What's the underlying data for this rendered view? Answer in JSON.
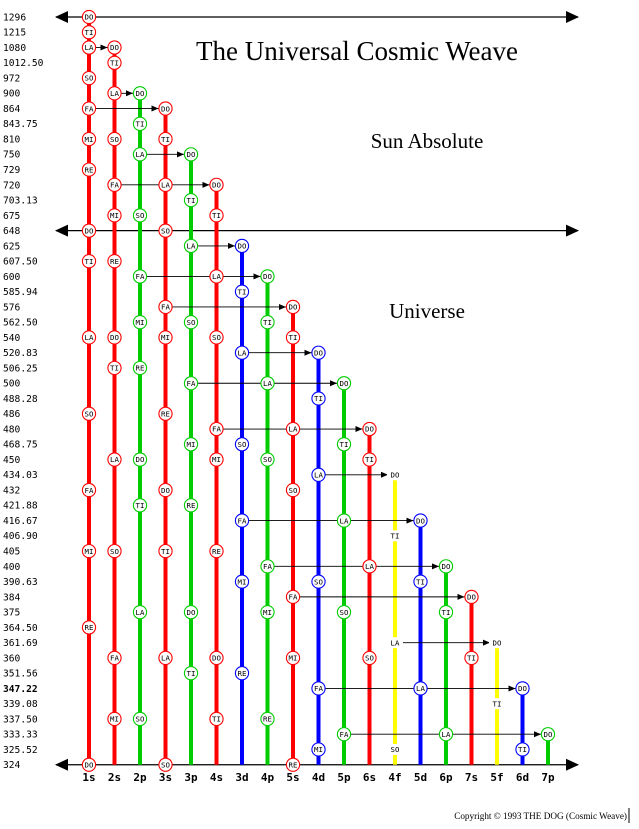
{
  "title": "The Universal Cosmic Weave",
  "labels": {
    "sun": "Sun Absolute",
    "universe": "Universe"
  },
  "copyright": "Copyright © 1993 THE DOG (Cosmic Weave)",
  "frequencies": [
    "1296",
    "1215",
    "1080",
    "1012.50",
    "972",
    "900",
    "864",
    "843.75",
    "810",
    "750",
    "729",
    "720",
    "703.13",
    "675",
    "648",
    "625",
    "607.50",
    "600",
    "585.94",
    "576",
    "562.50",
    "540",
    "520.83",
    "506.25",
    "500",
    "488.28",
    "486",
    "480",
    "468.75",
    "450",
    "434.03",
    "432",
    "421.88",
    "416.67",
    "406.90",
    "405",
    "400",
    "390.63",
    "384",
    "375",
    "364.50",
    "361.69",
    "360",
    "351.56",
    "347.22",
    "339.08",
    "337.50",
    "333.33",
    "325.52",
    "324"
  ],
  "bold_frequencies": [
    "347.22"
  ],
  "colors": {
    "red": "#ff0000",
    "green": "#00cc00",
    "blue": "#0000ff",
    "yellow": "#ffff00"
  },
  "chart_data": {
    "type": "diagram",
    "columns": [
      {
        "name": "1s",
        "color": "red",
        "top": "1296",
        "notes": [
          [
            "DO",
            "1296"
          ],
          [
            "TI",
            "1215"
          ],
          [
            "LA",
            "1080"
          ],
          [
            "SO",
            "972"
          ],
          [
            "FA",
            "864"
          ],
          [
            "MI",
            "810"
          ],
          [
            "RE",
            "729"
          ],
          [
            "DO",
            "648"
          ],
          [
            "TI",
            "607.50"
          ],
          [
            "LA",
            "540"
          ],
          [
            "SO",
            "486"
          ],
          [
            "FA",
            "432"
          ],
          [
            "MI",
            "405"
          ],
          [
            "RE",
            "364.50"
          ],
          [
            "DO",
            "324"
          ]
        ]
      },
      {
        "name": "2s",
        "color": "red",
        "top": "1080",
        "notes": [
          [
            "DO",
            "1080"
          ],
          [
            "TI",
            "1012.50"
          ],
          [
            "LA",
            "900"
          ],
          [
            "SO",
            "810"
          ],
          [
            "FA",
            "720"
          ],
          [
            "MI",
            "675"
          ],
          [
            "RE",
            "607.50"
          ],
          [
            "DO",
            "540"
          ],
          [
            "TI",
            "506.25"
          ],
          [
            "LA",
            "450"
          ],
          [
            "SO",
            "405"
          ],
          [
            "FA",
            "360"
          ],
          [
            "MI",
            "337.50"
          ]
        ]
      },
      {
        "name": "2p",
        "color": "green",
        "top": "900",
        "notes": [
          [
            "DO",
            "900"
          ],
          [
            "TI",
            "843.75"
          ],
          [
            "LA",
            "750"
          ],
          [
            "SO",
            "675"
          ],
          [
            "FA",
            "600"
          ],
          [
            "MI",
            "562.50"
          ],
          [
            "RE",
            "506.25"
          ],
          [
            "DO",
            "450"
          ],
          [
            "TI",
            "421.88"
          ],
          [
            "LA",
            "375"
          ],
          [
            "SO",
            "337.50"
          ]
        ]
      },
      {
        "name": "3s",
        "color": "red",
        "top": "864",
        "notes": [
          [
            "DO",
            "864"
          ],
          [
            "TI",
            "810"
          ],
          [
            "LA",
            "720"
          ],
          [
            "SO",
            "648"
          ],
          [
            "FA",
            "576"
          ],
          [
            "MI",
            "540"
          ],
          [
            "RE",
            "486"
          ],
          [
            "DO",
            "432"
          ],
          [
            "TI",
            "405"
          ],
          [
            "LA",
            "360"
          ],
          [
            "SO",
            "324"
          ]
        ]
      },
      {
        "name": "3p",
        "color": "green",
        "top": "750",
        "notes": [
          [
            "DO",
            "750"
          ],
          [
            "TI",
            "703.13"
          ],
          [
            "LA",
            "625"
          ],
          [
            "SO",
            "562.50"
          ],
          [
            "FA",
            "500"
          ],
          [
            "MI",
            "468.75"
          ],
          [
            "RE",
            "421.88"
          ],
          [
            "DO",
            "375"
          ],
          [
            "TI",
            "351.56"
          ]
        ]
      },
      {
        "name": "4s",
        "color": "red",
        "top": "720",
        "notes": [
          [
            "DO",
            "720"
          ],
          [
            "TI",
            "675"
          ],
          [
            "LA",
            "600"
          ],
          [
            "SO",
            "540"
          ],
          [
            "FA",
            "480"
          ],
          [
            "MI",
            "450"
          ],
          [
            "RE",
            "405"
          ],
          [
            "DO",
            "360"
          ],
          [
            "TI",
            "337.50"
          ]
        ]
      },
      {
        "name": "3d",
        "color": "blue",
        "top": "625",
        "notes": [
          [
            "DO",
            "625"
          ],
          [
            "TI",
            "585.94"
          ],
          [
            "LA",
            "520.83"
          ],
          [
            "SO",
            "468.75"
          ],
          [
            "FA",
            "416.67"
          ],
          [
            "MI",
            "390.63"
          ],
          [
            "RE",
            "351.56"
          ]
        ]
      },
      {
        "name": "4p",
        "color": "green",
        "top": "600",
        "notes": [
          [
            "DO",
            "600"
          ],
          [
            "TI",
            "562.50"
          ],
          [
            "LA",
            "500"
          ],
          [
            "SO",
            "450"
          ],
          [
            "FA",
            "400"
          ],
          [
            "MI",
            "375"
          ],
          [
            "RE",
            "337.50"
          ]
        ]
      },
      {
        "name": "5s",
        "color": "red",
        "top": "576",
        "notes": [
          [
            "DO",
            "576"
          ],
          [
            "TI",
            "540"
          ],
          [
            "LA",
            "480"
          ],
          [
            "SO",
            "432"
          ],
          [
            "FA",
            "384"
          ],
          [
            "MI",
            "360"
          ],
          [
            "RE",
            "324"
          ]
        ]
      },
      {
        "name": "4d",
        "color": "blue",
        "top": "520.83",
        "notes": [
          [
            "DO",
            "520.83"
          ],
          [
            "TI",
            "488.28"
          ],
          [
            "LA",
            "434.03"
          ],
          [
            "SO",
            "390.63"
          ],
          [
            "FA",
            "347.22"
          ],
          [
            "MI",
            "325.52"
          ]
        ]
      },
      {
        "name": "5p",
        "color": "green",
        "top": "500",
        "notes": [
          [
            "DO",
            "500"
          ],
          [
            "TI",
            "468.75"
          ],
          [
            "LA",
            "416.67"
          ],
          [
            "SO",
            "375"
          ],
          [
            "FA",
            "333.33"
          ]
        ]
      },
      {
        "name": "6s",
        "color": "red",
        "top": "480",
        "notes": [
          [
            "DO",
            "480"
          ],
          [
            "TI",
            "450"
          ],
          [
            "LA",
            "400"
          ],
          [
            "SO",
            "360"
          ]
        ]
      },
      {
        "name": "4f",
        "color": "yellow",
        "top": "434.03",
        "notes": [
          [
            "DO",
            "434.03"
          ],
          [
            "TI",
            "406.90"
          ],
          [
            "LA",
            "361.69"
          ],
          [
            "SO",
            "325.52"
          ]
        ]
      },
      {
        "name": "5d",
        "color": "blue",
        "top": "416.67",
        "notes": [
          [
            "DO",
            "416.67"
          ],
          [
            "TI",
            "390.63"
          ],
          [
            "LA",
            "347.22"
          ]
        ]
      },
      {
        "name": "6p",
        "color": "green",
        "top": "400",
        "notes": [
          [
            "DO",
            "400"
          ],
          [
            "TI",
            "375"
          ],
          [
            "LA",
            "333.33"
          ]
        ]
      },
      {
        "name": "7s",
        "color": "red",
        "top": "384",
        "notes": [
          [
            "DO",
            "384"
          ],
          [
            "TI",
            "360"
          ]
        ]
      },
      {
        "name": "5f",
        "color": "yellow",
        "top": "361.69",
        "notes": [
          [
            "DO",
            "361.69"
          ],
          [
            "TI",
            "339.08"
          ]
        ]
      },
      {
        "name": "6d",
        "color": "blue",
        "top": "347.22",
        "notes": [
          [
            "DO",
            "347.22"
          ],
          [
            "TI",
            "325.52"
          ]
        ]
      },
      {
        "name": "7p",
        "color": "green",
        "top": "333.33",
        "notes": [
          [
            "DO",
            "333.33"
          ]
        ]
      }
    ],
    "horizontal_links": [
      [
        "2s",
        "1080",
        "1s"
      ],
      [
        "2p",
        "900",
        "2s"
      ],
      [
        "3s",
        "864",
        "1s"
      ],
      [
        "3p",
        "750",
        "2p"
      ],
      [
        "4s",
        "720",
        "2s"
      ],
      [
        "3d",
        "625",
        "3p"
      ],
      [
        "4p",
        "600",
        "2p"
      ],
      [
        "5s",
        "576",
        "3s"
      ],
      [
        "4d",
        "520.83",
        "3d"
      ],
      [
        "5p",
        "500",
        "3p"
      ],
      [
        "6s",
        "480",
        "4s"
      ],
      [
        "4f",
        "434.03",
        "4d"
      ],
      [
        "5d",
        "416.67",
        "3d"
      ],
      [
        "6p",
        "400",
        "4p"
      ],
      [
        "7s",
        "384",
        "5s"
      ],
      [
        "5f",
        "361.69",
        "4f"
      ],
      [
        "6d",
        "347.22",
        "4d"
      ],
      [
        "7p",
        "333.33",
        "5p"
      ]
    ],
    "double_arrows": [
      "1296",
      "648",
      "324"
    ]
  }
}
